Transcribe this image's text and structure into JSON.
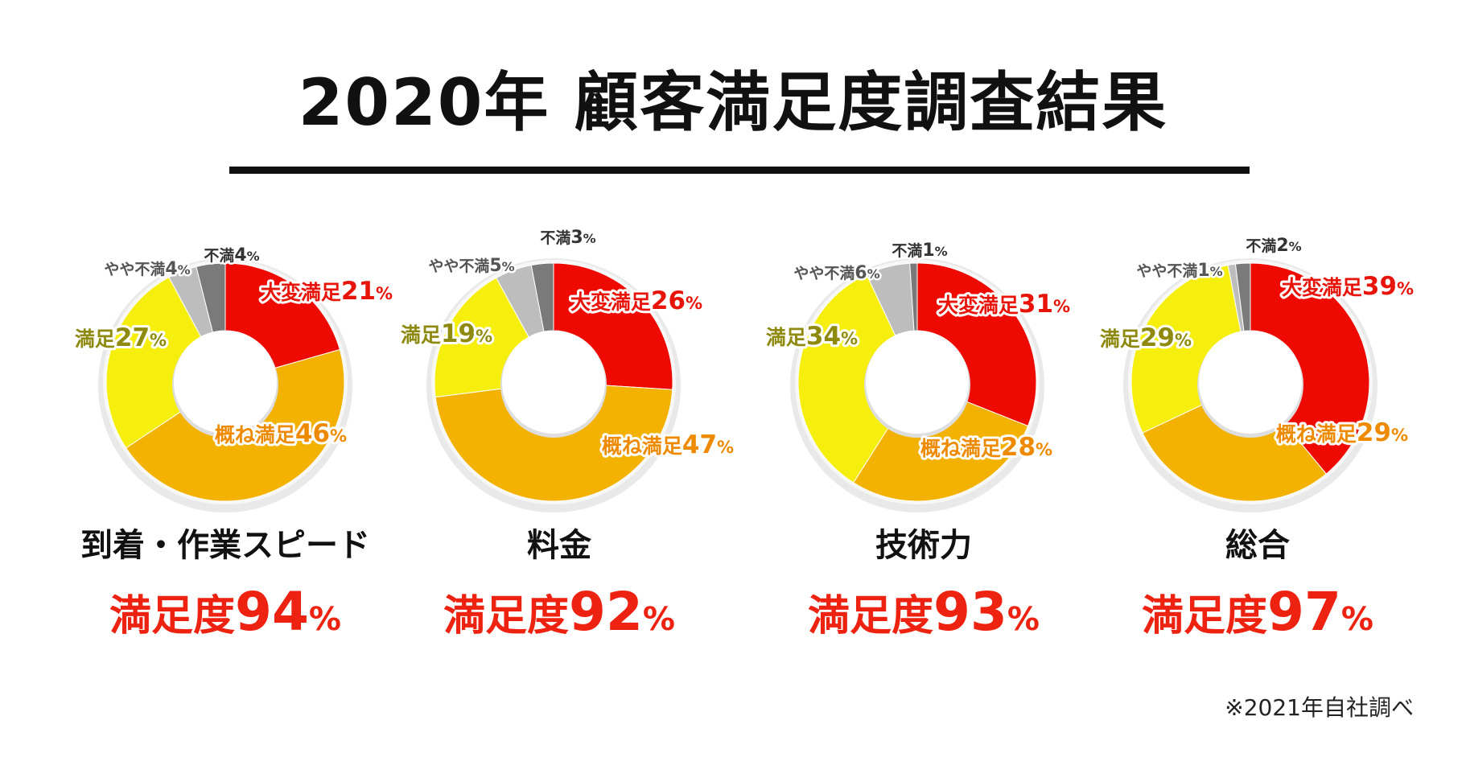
{
  "title": "2020年 顧客満足度調査結果",
  "footnote": "※2021年自社調べ",
  "colors": {
    "very_satisfied": "#ee0a00",
    "mostly_satisfied": "#f3b100",
    "satisfied": "#f6ee0c",
    "somewhat_dissatisfied": "#bdbdbd",
    "dissatisfied": "#7a7a7a",
    "accent": "#ee2211"
  },
  "chart_data": [
    {
      "type": "pie",
      "category": "到着・作業スピード",
      "satisfaction": {
        "label": "満足度",
        "value": "94",
        "unit": "%"
      },
      "slices": [
        {
          "name": "大変満足",
          "value": 21
        },
        {
          "name": "概ね満足",
          "value": 46
        },
        {
          "name": "満足",
          "value": 27
        },
        {
          "name": "やや不満",
          "value": 4
        },
        {
          "name": "不満",
          "value": 4
        }
      ]
    },
    {
      "type": "pie",
      "category": "料金",
      "satisfaction": {
        "label": "満足度",
        "value": "92",
        "unit": "%"
      },
      "slices": [
        {
          "name": "大変満足",
          "value": 26
        },
        {
          "name": "概ね満足",
          "value": 47
        },
        {
          "name": "満足",
          "value": 19
        },
        {
          "name": "やや不満",
          "value": 5
        },
        {
          "name": "不満",
          "value": 3
        }
      ]
    },
    {
      "type": "pie",
      "category": "技術力",
      "satisfaction": {
        "label": "満足度",
        "value": "93",
        "unit": "%"
      },
      "slices": [
        {
          "name": "大変満足",
          "value": 31
        },
        {
          "name": "概ね満足",
          "value": 28
        },
        {
          "name": "満足",
          "value": 34
        },
        {
          "name": "やや不満",
          "value": 6
        },
        {
          "name": "不満",
          "value": 1
        }
      ]
    },
    {
      "type": "pie",
      "category": "総合",
      "satisfaction": {
        "label": "満足度",
        "value": "97",
        "unit": "%"
      },
      "slices": [
        {
          "name": "大変満足",
          "value": 39
        },
        {
          "name": "概ね満足",
          "value": 29
        },
        {
          "name": "満足",
          "value": 29
        },
        {
          "name": "やや不満",
          "value": 1
        },
        {
          "name": "不満",
          "value": 2
        }
      ]
    }
  ]
}
